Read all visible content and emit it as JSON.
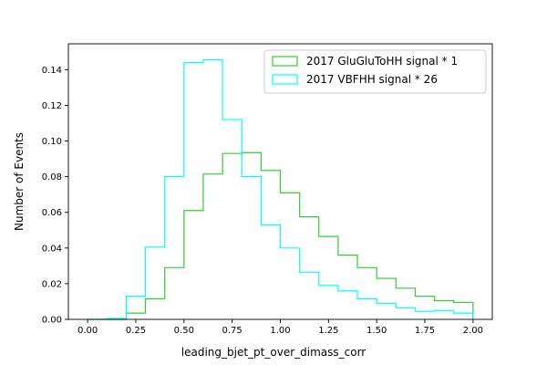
{
  "chart_data": {
    "type": "histogram",
    "title": "",
    "xlabel": "leading_bjet_pt_over_dimass_corr",
    "ylabel": "Number of Events",
    "xlim": [
      -0.1,
      2.1
    ],
    "ylim": [
      0.0,
      0.1545
    ],
    "xticks": [
      0.0,
      0.25,
      0.5,
      0.75,
      1.0,
      1.25,
      1.5,
      1.75,
      2.0
    ],
    "xtick_labels": [
      "0.00",
      "0.25",
      "0.50",
      "0.75",
      "1.00",
      "1.25",
      "1.50",
      "1.75",
      "2.00"
    ],
    "yticks": [
      0.0,
      0.02,
      0.04,
      0.06,
      0.08,
      0.1,
      0.12,
      0.14
    ],
    "ytick_labels": [
      "0.00",
      "0.02",
      "0.04",
      "0.06",
      "0.08",
      "0.10",
      "0.12",
      "0.14"
    ],
    "bin_edges": [
      0.0,
      0.1,
      0.2,
      0.3,
      0.4,
      0.5,
      0.6,
      0.7,
      0.8,
      0.9,
      1.0,
      1.1,
      1.2,
      1.3,
      1.4,
      1.5,
      1.6,
      1.7,
      1.8,
      1.9,
      2.0
    ],
    "grid": false,
    "legend_position": "top-right",
    "series": [
      {
        "name": "2017 GluGluToHH signal * 1",
        "color": "#32cd32",
        "values": [
          0.0,
          0.0,
          0.0035,
          0.0115,
          0.029,
          0.061,
          0.0815,
          0.093,
          0.0935,
          0.0835,
          0.071,
          0.0575,
          0.0465,
          0.036,
          0.029,
          0.023,
          0.0175,
          0.013,
          0.0105,
          0.0095
        ]
      },
      {
        "name": "2017 VBFHH signal * 26",
        "color": "#00ffff",
        "values": [
          0.0,
          0.0005,
          0.013,
          0.0405,
          0.08,
          0.144,
          0.1455,
          0.112,
          0.08,
          0.053,
          0.04,
          0.0265,
          0.019,
          0.016,
          0.0115,
          0.009,
          0.0065,
          0.0045,
          0.005,
          0.0035
        ]
      }
    ]
  }
}
